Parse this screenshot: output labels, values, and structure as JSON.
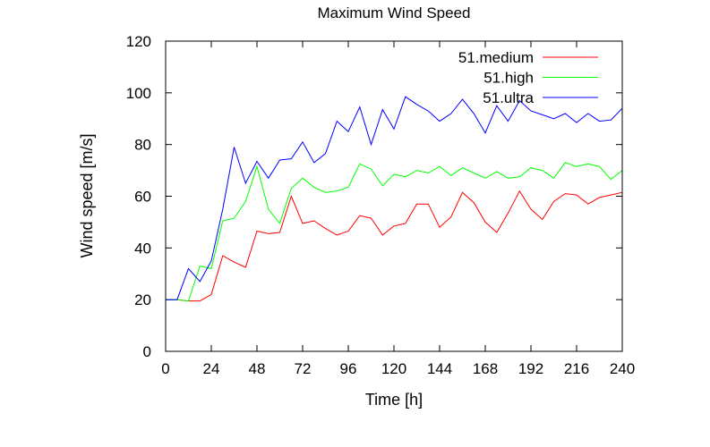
{
  "chart_data": {
    "type": "line",
    "title": "Maximum Wind Speed",
    "xlabel": "Time [h]",
    "ylabel": "Wind speed [m/s]",
    "xlim": [
      0,
      240
    ],
    "ylim": [
      0,
      120
    ],
    "xticks": [
      0,
      24,
      48,
      72,
      96,
      120,
      144,
      168,
      192,
      216,
      240
    ],
    "yticks": [
      0,
      20,
      40,
      60,
      80,
      100,
      120
    ],
    "grid": false,
    "legend_position": "top-right",
    "x": [
      0,
      6,
      12,
      18,
      24,
      30,
      36,
      42,
      48,
      54,
      60,
      66,
      72,
      78,
      84,
      90,
      96,
      102,
      108,
      114,
      120,
      126,
      132,
      138,
      144,
      150,
      156,
      162,
      168,
      174,
      180,
      186,
      192,
      198,
      204,
      210,
      216,
      222,
      228,
      234,
      240
    ],
    "series": [
      {
        "name": "51.medium",
        "color": "#ff0000",
        "values": [
          20,
          20,
          19.5,
          19.5,
          22,
          37,
          34.5,
          32.5,
          46.5,
          45.5,
          46,
          60,
          49.5,
          50.5,
          47.5,
          45,
          46.5,
          52.5,
          51.5,
          45,
          48.5,
          49.5,
          57,
          57,
          48,
          52,
          61.5,
          57.5,
          50,
          46,
          53.5,
          62,
          55,
          51,
          58,
          61,
          60.5,
          57,
          59.5,
          60.5,
          61.5
        ]
      },
      {
        "name": "51.high",
        "color": "#00ff00",
        "values": [
          20,
          20,
          19.5,
          33,
          32,
          50.5,
          51.5,
          58,
          71.5,
          55,
          49.5,
          63,
          67,
          63.5,
          61.5,
          62,
          63.5,
          72.5,
          70.5,
          64,
          68.5,
          67.5,
          70,
          69,
          71.5,
          68,
          71,
          69,
          67,
          69.5,
          67,
          67.5,
          71,
          70,
          67,
          73,
          71.5,
          72.5,
          71.5,
          66.5,
          70
        ]
      },
      {
        "name": "51.ultra",
        "color": "#0000ff",
        "values": [
          20,
          20,
          32,
          27,
          35,
          55,
          79,
          65,
          73.5,
          67,
          74,
          74.5,
          81,
          73,
          76.5,
          89,
          85,
          94.5,
          80,
          93.5,
          86,
          98.5,
          95.5,
          93,
          89,
          92,
          97.5,
          92,
          84.5,
          95,
          89,
          97,
          93,
          91.5,
          90,
          92,
          88.5,
          92,
          89,
          89.5,
          94
        ]
      }
    ]
  }
}
